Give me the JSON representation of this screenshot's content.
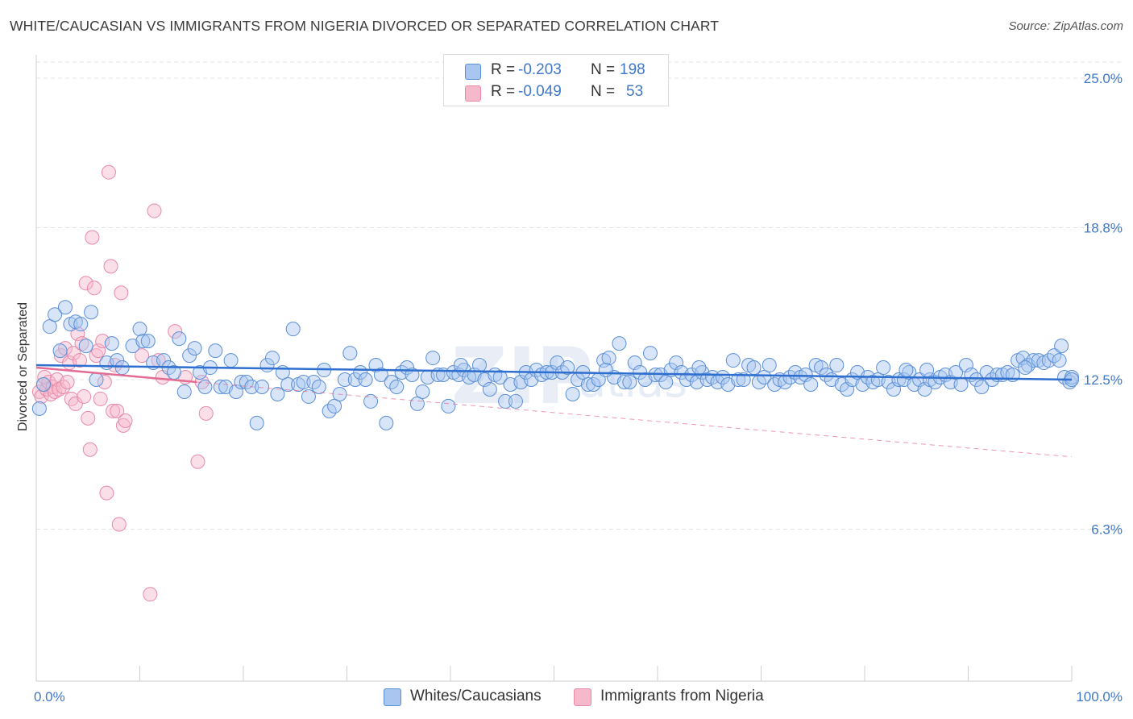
{
  "header": {
    "title": "WHITE/CAUCASIAN VS IMMIGRANTS FROM NIGERIA DIVORCED OR SEPARATED CORRELATION CHART",
    "source": "Source: ZipAtlas.com"
  },
  "watermark": {
    "zip": "ZIP",
    "atlas": "atlas"
  },
  "legend": {
    "r_label": "R =",
    "n_label": "N =",
    "rows": [
      {
        "r": "-0.203",
        "n": "198"
      },
      {
        "r": "-0.049",
        "n": "53"
      }
    ]
  },
  "bottom_legend": {
    "series1": "Whites/Caucasians",
    "series2": "Immigrants from Nigeria"
  },
  "colors": {
    "blue_fill": "#a9c6f0",
    "blue_stroke": "#5b8fd6",
    "blue_line": "#2f6fd0",
    "pink_fill": "#f6b9cc",
    "pink_stroke": "#e78aa8",
    "pink_line": "#e46c93",
    "tick_text": "#3f78c9"
  },
  "chart_data": {
    "type": "scatter",
    "title": "WHITE/CAUCASIAN VS IMMIGRANTS FROM NIGERIA DIVORCED OR SEPARATED CORRELATION CHART",
    "xlabel": "",
    "ylabel": "Divorced or Separated",
    "xlim": [
      0,
      100
    ],
    "ylim": [
      0,
      26.5
    ],
    "x_tick_labels": [
      "0.0%",
      "100.0%"
    ],
    "y_ticks": [
      6.3,
      12.5,
      18.8,
      25.0
    ],
    "y_tick_labels": [
      "6.3%",
      "12.5%",
      "18.8%",
      "25.0%"
    ],
    "grid": "horizontal dashed",
    "legend_position": "top-center",
    "series": [
      {
        "name": "Whites/Caucasians",
        "r": -0.203,
        "n": 198,
        "trend": {
          "x": [
            0,
            100
          ],
          "y": [
            13.1,
            12.5
          ]
        },
        "points": [
          [
            0.3,
            11.3
          ],
          [
            0.7,
            12.3
          ],
          [
            1.3,
            14.7
          ],
          [
            1.8,
            15.2
          ],
          [
            2.3,
            13.7
          ],
          [
            2.8,
            15.5
          ],
          [
            3.3,
            14.8
          ],
          [
            3.8,
            14.9
          ],
          [
            4.3,
            14.8
          ],
          [
            4.8,
            13.9
          ],
          [
            5.3,
            15.3
          ],
          [
            5.8,
            12.5
          ],
          [
            6.8,
            13.2
          ],
          [
            7.8,
            13.3
          ],
          [
            7.3,
            14.0
          ],
          [
            8.3,
            13.0
          ],
          [
            9.3,
            13.9
          ],
          [
            10.0,
            14.6
          ],
          [
            10.3,
            14.1
          ],
          [
            10.8,
            14.1
          ],
          [
            11.3,
            13.2
          ],
          [
            12.3,
            13.3
          ],
          [
            12.8,
            13.0
          ],
          [
            13.3,
            12.8
          ],
          [
            13.8,
            14.2
          ],
          [
            14.3,
            12.0
          ],
          [
            14.8,
            13.5
          ],
          [
            15.3,
            13.8
          ],
          [
            15.8,
            12.8
          ],
          [
            16.3,
            12.2
          ],
          [
            16.8,
            13.0
          ],
          [
            17.3,
            13.7
          ],
          [
            17.8,
            12.2
          ],
          [
            18.3,
            12.2
          ],
          [
            18.8,
            13.3
          ],
          [
            19.3,
            12.0
          ],
          [
            19.8,
            12.4
          ],
          [
            20.3,
            12.4
          ],
          [
            20.8,
            12.2
          ],
          [
            21.3,
            10.7
          ],
          [
            21.8,
            12.2
          ],
          [
            22.3,
            13.1
          ],
          [
            22.8,
            13.4
          ],
          [
            23.3,
            11.9
          ],
          [
            23.8,
            12.8
          ],
          [
            24.3,
            12.3
          ],
          [
            24.8,
            14.6
          ],
          [
            25.3,
            12.3
          ],
          [
            25.8,
            12.4
          ],
          [
            26.3,
            11.8
          ],
          [
            26.8,
            12.4
          ],
          [
            27.3,
            12.2
          ],
          [
            27.8,
            12.9
          ],
          [
            28.3,
            11.2
          ],
          [
            28.8,
            11.4
          ],
          [
            29.3,
            11.9
          ],
          [
            29.8,
            12.5
          ],
          [
            30.3,
            13.6
          ],
          [
            30.8,
            12.5
          ],
          [
            31.3,
            12.8
          ],
          [
            31.8,
            12.5
          ],
          [
            32.3,
            11.6
          ],
          [
            32.8,
            13.1
          ],
          [
            33.3,
            12.7
          ],
          [
            33.8,
            10.7
          ],
          [
            34.3,
            12.4
          ],
          [
            34.8,
            12.2
          ],
          [
            35.3,
            12.8
          ],
          [
            35.8,
            13.0
          ],
          [
            36.3,
            12.7
          ],
          [
            36.8,
            11.5
          ],
          [
            37.3,
            12.0
          ],
          [
            37.8,
            12.6
          ],
          [
            38.3,
            13.4
          ],
          [
            38.8,
            12.7
          ],
          [
            39.3,
            12.7
          ],
          [
            39.8,
            11.4
          ],
          [
            40.3,
            12.8
          ],
          [
            40.8,
            12.7
          ],
          [
            41.3,
            12.9
          ],
          [
            41.8,
            12.6
          ],
          [
            42.3,
            12.7
          ],
          [
            42.8,
            13.1
          ],
          [
            43.3,
            12.5
          ],
          [
            43.8,
            12.1
          ],
          [
            44.3,
            12.7
          ],
          [
            44.8,
            12.6
          ],
          [
            45.3,
            11.6
          ],
          [
            45.8,
            12.3
          ],
          [
            46.3,
            11.6
          ],
          [
            46.8,
            12.4
          ],
          [
            47.3,
            12.8
          ],
          [
            47.8,
            12.5
          ],
          [
            48.3,
            12.9
          ],
          [
            48.8,
            12.7
          ],
          [
            49.3,
            12.8
          ],
          [
            49.8,
            12.8
          ],
          [
            50.3,
            13.2
          ],
          [
            50.8,
            12.8
          ],
          [
            51.3,
            13.0
          ],
          [
            51.8,
            11.9
          ],
          [
            52.3,
            12.5
          ],
          [
            52.8,
            12.8
          ],
          [
            53.3,
            12.3
          ],
          [
            53.8,
            12.3
          ],
          [
            54.3,
            12.5
          ],
          [
            54.8,
            13.3
          ],
          [
            55.3,
            13.4
          ],
          [
            55.8,
            12.6
          ],
          [
            56.3,
            14.0
          ],
          [
            56.8,
            12.4
          ],
          [
            57.3,
            12.4
          ],
          [
            57.8,
            13.2
          ],
          [
            58.3,
            12.8
          ],
          [
            58.8,
            12.5
          ],
          [
            59.3,
            13.6
          ],
          [
            59.8,
            12.7
          ],
          [
            60.3,
            12.7
          ],
          [
            60.8,
            12.4
          ],
          [
            61.3,
            12.9
          ],
          [
            61.8,
            13.2
          ],
          [
            62.3,
            12.8
          ],
          [
            62.8,
            12.5
          ],
          [
            63.3,
            12.7
          ],
          [
            63.8,
            12.4
          ],
          [
            64.3,
            12.8
          ],
          [
            64.8,
            12.5
          ],
          [
            65.3,
            12.6
          ],
          [
            65.8,
            12.4
          ],
          [
            66.3,
            12.6
          ],
          [
            66.8,
            12.3
          ],
          [
            67.3,
            13.3
          ],
          [
            67.8,
            12.5
          ],
          [
            68.3,
            12.5
          ],
          [
            68.8,
            13.1
          ],
          [
            69.3,
            13.0
          ],
          [
            69.8,
            12.4
          ],
          [
            70.3,
            12.6
          ],
          [
            70.8,
            13.1
          ],
          [
            71.3,
            12.3
          ],
          [
            71.8,
            12.5
          ],
          [
            72.3,
            12.4
          ],
          [
            72.8,
            12.6
          ],
          [
            73.3,
            12.8
          ],
          [
            73.8,
            12.6
          ],
          [
            74.3,
            12.7
          ],
          [
            74.8,
            12.3
          ],
          [
            75.3,
            13.1
          ],
          [
            75.8,
            13.0
          ],
          [
            76.3,
            12.7
          ],
          [
            76.8,
            12.5
          ],
          [
            77.3,
            13.1
          ],
          [
            77.8,
            12.3
          ],
          [
            78.3,
            12.1
          ],
          [
            78.8,
            12.5
          ],
          [
            79.3,
            12.8
          ],
          [
            79.8,
            12.3
          ],
          [
            80.3,
            12.6
          ],
          [
            80.8,
            12.4
          ],
          [
            81.3,
            12.5
          ],
          [
            81.8,
            13.0
          ],
          [
            82.3,
            12.4
          ],
          [
            82.8,
            12.1
          ],
          [
            83.3,
            12.5
          ],
          [
            83.8,
            12.5
          ],
          [
            84.3,
            12.8
          ],
          [
            84.8,
            12.3
          ],
          [
            85.3,
            12.5
          ],
          [
            85.8,
            12.1
          ],
          [
            86.3,
            12.5
          ],
          [
            86.8,
            12.4
          ],
          [
            87.3,
            12.6
          ],
          [
            87.8,
            12.7
          ],
          [
            88.3,
            12.4
          ],
          [
            88.8,
            12.8
          ],
          [
            89.3,
            12.3
          ],
          [
            89.8,
            13.1
          ],
          [
            90.3,
            12.7
          ],
          [
            90.8,
            12.5
          ],
          [
            91.3,
            12.2
          ],
          [
            91.8,
            12.8
          ],
          [
            92.3,
            12.5
          ],
          [
            92.8,
            12.7
          ],
          [
            93.3,
            12.7
          ],
          [
            93.8,
            12.8
          ],
          [
            94.3,
            12.7
          ],
          [
            94.8,
            13.3
          ],
          [
            95.3,
            13.4
          ],
          [
            95.8,
            13.1
          ],
          [
            96.3,
            13.3
          ],
          [
            96.8,
            13.3
          ],
          [
            97.3,
            13.2
          ],
          [
            97.8,
            13.3
          ],
          [
            98.3,
            13.5
          ],
          [
            98.8,
            13.3
          ],
          [
            99.3,
            12.6
          ],
          [
            99.8,
            12.4
          ],
          [
            100.0,
            12.6
          ],
          [
            99.0,
            13.9
          ],
          [
            100.0,
            12.5
          ],
          [
            55.0,
            12.9
          ],
          [
            41.0,
            13.1
          ],
          [
            64.0,
            13.0
          ],
          [
            84.0,
            12.9
          ],
          [
            86.0,
            12.9
          ],
          [
            95.5,
            13.0
          ]
        ]
      },
      {
        "name": "Immigrants from Nigeria",
        "r": -0.049,
        "n": 53,
        "trend_solid": {
          "x": [
            0,
            15.5
          ],
          "y": [
            13.0,
            12.4
          ]
        },
        "trend_dashed": {
          "x": [
            15.5,
            100
          ],
          "y": [
            12.4,
            9.3
          ]
        },
        "points": [
          [
            0.3,
            12.0
          ],
          [
            0.5,
            11.8
          ],
          [
            0.7,
            12.3
          ],
          [
            0.8,
            12.6
          ],
          [
            1.0,
            12.1
          ],
          [
            1.2,
            12.4
          ],
          [
            1.4,
            11.9
          ],
          [
            1.6,
            12.2
          ],
          [
            1.8,
            12.0
          ],
          [
            2.0,
            12.5
          ],
          [
            2.2,
            12.1
          ],
          [
            2.4,
            13.5
          ],
          [
            2.6,
            12.2
          ],
          [
            2.8,
            13.8
          ],
          [
            3.0,
            12.4
          ],
          [
            3.2,
            13.2
          ],
          [
            3.4,
            11.7
          ],
          [
            3.6,
            13.6
          ],
          [
            3.8,
            11.5
          ],
          [
            4.0,
            14.4
          ],
          [
            4.2,
            13.3
          ],
          [
            4.4,
            14.0
          ],
          [
            4.6,
            11.8
          ],
          [
            4.8,
            16.5
          ],
          [
            5.0,
            10.9
          ],
          [
            5.2,
            9.6
          ],
          [
            5.4,
            18.4
          ],
          [
            5.6,
            16.3
          ],
          [
            5.8,
            13.5
          ],
          [
            6.0,
            13.7
          ],
          [
            6.2,
            11.7
          ],
          [
            6.4,
            14.1
          ],
          [
            6.6,
            12.4
          ],
          [
            6.8,
            7.8
          ],
          [
            7.0,
            21.1
          ],
          [
            7.2,
            17.2
          ],
          [
            7.4,
            11.2
          ],
          [
            7.6,
            13.1
          ],
          [
            7.8,
            11.2
          ],
          [
            8.0,
            6.5
          ],
          [
            8.2,
            16.1
          ],
          [
            8.4,
            10.6
          ],
          [
            8.6,
            10.8
          ],
          [
            10.2,
            13.5
          ],
          [
            11.0,
            3.6
          ],
          [
            11.4,
            19.5
          ],
          [
            11.8,
            13.3
          ],
          [
            12.2,
            12.6
          ],
          [
            13.4,
            14.5
          ],
          [
            14.4,
            12.6
          ],
          [
            15.6,
            9.1
          ],
          [
            16.4,
            11.1
          ],
          [
            16.0,
            12.4
          ]
        ]
      }
    ]
  }
}
